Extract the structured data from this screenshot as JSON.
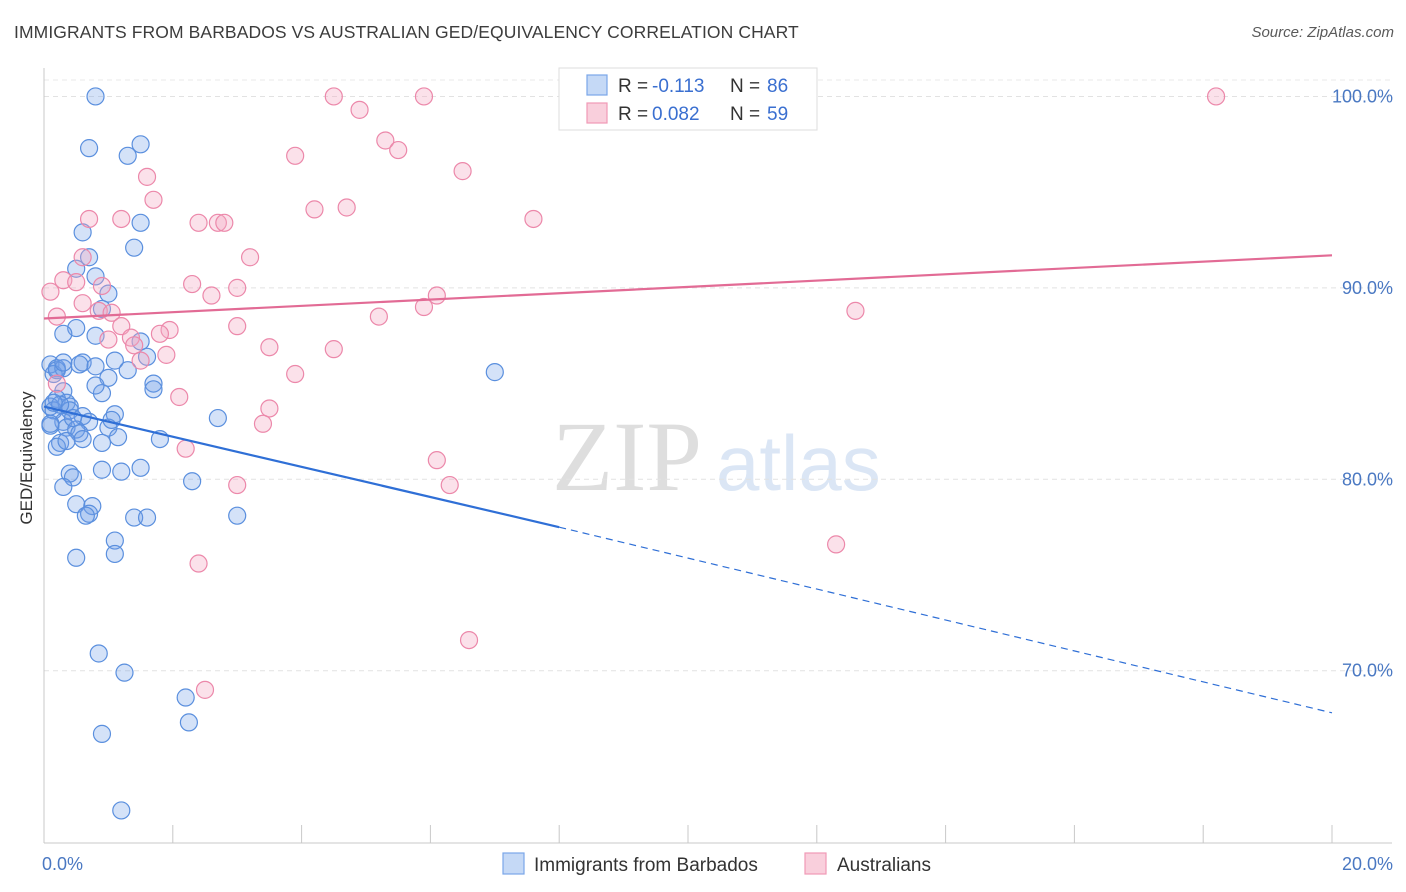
{
  "title": "IMMIGRANTS FROM BARBADOS VS AUSTRALIAN GED/EQUIVALENCY CORRELATION CHART",
  "source": "Source: ZipAtlas.com",
  "watermark": {
    "zip": "ZIP",
    "atlas": "atlas"
  },
  "legend_box": [
    {
      "r_label": "R =",
      "r_value": "-0.113",
      "n_label": "N =",
      "n_value": "86",
      "color": "#6fa0e8"
    },
    {
      "r_label": "R =",
      "r_value": "0.082",
      "n_label": "N =",
      "n_value": "59",
      "color": "#f08fb0"
    }
  ],
  "bottom_legend": [
    {
      "label": "Immigrants from Barbados",
      "color": "#6fa0e8"
    },
    {
      "label": "Australians",
      "color": "#f08fb0"
    }
  ],
  "chart_data": {
    "type": "scatter",
    "ylabel": "GED/Equivalency",
    "xlabel": "",
    "xlim": [
      0.0,
      20.0
    ],
    "ylim": [
      61.0,
      101.8
    ],
    "x_tick_labels": [
      {
        "value": 0.0,
        "label": "0.0%"
      },
      {
        "value": 20.0,
        "label": "20.0%"
      }
    ],
    "y_tick_labels": [
      {
        "value": 100.0,
        "label": "100.0%"
      },
      {
        "value": 90.0,
        "label": "90.0%"
      },
      {
        "value": 80.0,
        "label": "80.0%"
      },
      {
        "value": 70.0,
        "label": "70.0%"
      }
    ],
    "grid": true,
    "series": [
      {
        "name": "Immigrants from Barbados",
        "color": "#6fa0e8",
        "stroke": "#5a8fde",
        "trend": {
          "x": [
            0.0,
            8.0
          ],
          "y": [
            83.8,
            77.5
          ],
          "dash_to": [
            20.0,
            67.8
          ]
        },
        "points": [
          [
            0.8,
            100.0
          ],
          [
            0.7,
            97.3
          ],
          [
            1.3,
            96.9
          ],
          [
            1.5,
            97.5
          ],
          [
            0.6,
            92.9
          ],
          [
            1.5,
            93.4
          ],
          [
            1.4,
            92.1
          ],
          [
            0.5,
            91.0
          ],
          [
            0.7,
            91.6
          ],
          [
            0.8,
            90.6
          ],
          [
            1.0,
            89.7
          ],
          [
            0.9,
            88.9
          ],
          [
            0.5,
            87.9
          ],
          [
            0.3,
            87.6
          ],
          [
            0.8,
            87.5
          ],
          [
            1.5,
            87.2
          ],
          [
            1.6,
            86.4
          ],
          [
            1.1,
            86.2
          ],
          [
            0.6,
            86.1
          ],
          [
            0.1,
            86.0
          ],
          [
            0.2,
            85.8
          ],
          [
            0.15,
            85.5
          ],
          [
            0.3,
            85.8
          ],
          [
            0.8,
            85.9
          ],
          [
            1.3,
            85.7
          ],
          [
            1.0,
            85.3
          ],
          [
            1.7,
            85.0
          ],
          [
            1.7,
            84.7
          ],
          [
            0.3,
            84.6
          ],
          [
            0.9,
            84.5
          ],
          [
            0.2,
            84.2
          ],
          [
            0.35,
            84.0
          ],
          [
            0.4,
            83.8
          ],
          [
            0.1,
            83.8
          ],
          [
            0.15,
            83.6
          ],
          [
            0.4,
            83.6
          ],
          [
            0.6,
            83.3
          ],
          [
            1.1,
            83.4
          ],
          [
            0.3,
            83.0
          ],
          [
            0.7,
            83.0
          ],
          [
            0.1,
            82.8
          ],
          [
            0.35,
            82.7
          ],
          [
            0.5,
            82.6
          ],
          [
            1.0,
            82.7
          ],
          [
            0.55,
            82.4
          ],
          [
            1.15,
            82.2
          ],
          [
            0.6,
            82.1
          ],
          [
            1.8,
            82.1
          ],
          [
            0.25,
            81.9
          ],
          [
            0.9,
            81.9
          ],
          [
            0.2,
            81.7
          ],
          [
            2.7,
            83.2
          ],
          [
            0.4,
            80.3
          ],
          [
            0.45,
            80.1
          ],
          [
            0.9,
            80.5
          ],
          [
            1.2,
            80.4
          ],
          [
            1.5,
            80.6
          ],
          [
            2.3,
            79.9
          ],
          [
            0.3,
            79.6
          ],
          [
            0.5,
            78.7
          ],
          [
            0.75,
            78.6
          ],
          [
            0.7,
            78.2
          ],
          [
            0.65,
            78.1
          ],
          [
            1.4,
            78.0
          ],
          [
            1.6,
            78.0
          ],
          [
            3.0,
            78.1
          ],
          [
            1.1,
            76.8
          ],
          [
            1.1,
            76.1
          ],
          [
            0.5,
            75.9
          ],
          [
            7.0,
            85.6
          ],
          [
            0.85,
            70.9
          ],
          [
            1.25,
            69.9
          ],
          [
            2.2,
            68.6
          ],
          [
            2.25,
            67.3
          ],
          [
            0.9,
            66.7
          ],
          [
            1.2,
            62.7
          ],
          [
            0.1,
            82.9
          ],
          [
            0.2,
            85.7
          ],
          [
            0.25,
            83.9
          ],
          [
            0.55,
            86.0
          ],
          [
            0.15,
            84.0
          ],
          [
            0.35,
            82.0
          ],
          [
            0.8,
            84.9
          ],
          [
            0.3,
            86.1
          ],
          [
            0.45,
            83.2
          ],
          [
            1.05,
            83.1
          ]
        ]
      },
      {
        "name": "Australians",
        "color": "#f4a8c2",
        "stroke": "#ec88aa",
        "trend": {
          "x": [
            0.0,
            20.0
          ],
          "y": [
            88.4,
            91.7
          ]
        },
        "points": [
          [
            4.5,
            100.0
          ],
          [
            5.9,
            100.0
          ],
          [
            18.2,
            100.0
          ],
          [
            4.9,
            99.3
          ],
          [
            5.3,
            97.7
          ],
          [
            5.5,
            97.2
          ],
          [
            3.9,
            96.9
          ],
          [
            6.5,
            96.1
          ],
          [
            1.6,
            95.8
          ],
          [
            1.7,
            94.6
          ],
          [
            4.2,
            94.1
          ],
          [
            4.7,
            94.2
          ],
          [
            0.7,
            93.6
          ],
          [
            1.2,
            93.6
          ],
          [
            2.4,
            93.4
          ],
          [
            2.7,
            93.4
          ],
          [
            2.8,
            93.4
          ],
          [
            7.6,
            93.6
          ],
          [
            0.6,
            91.6
          ],
          [
            3.2,
            91.6
          ],
          [
            0.3,
            90.4
          ],
          [
            0.5,
            90.3
          ],
          [
            2.3,
            90.2
          ],
          [
            0.9,
            90.1
          ],
          [
            3.0,
            90.0
          ],
          [
            0.1,
            89.8
          ],
          [
            2.6,
            89.6
          ],
          [
            6.1,
            89.6
          ],
          [
            5.9,
            89.0
          ],
          [
            0.85,
            88.8
          ],
          [
            1.05,
            88.7
          ],
          [
            0.2,
            88.5
          ],
          [
            5.2,
            88.5
          ],
          [
            12.6,
            88.8
          ],
          [
            1.2,
            88.0
          ],
          [
            1.95,
            87.8
          ],
          [
            3.0,
            88.0
          ],
          [
            1.35,
            87.4
          ],
          [
            1.8,
            87.6
          ],
          [
            1.0,
            87.3
          ],
          [
            1.4,
            87.0
          ],
          [
            3.5,
            86.9
          ],
          [
            4.5,
            86.8
          ],
          [
            1.5,
            86.2
          ],
          [
            1.9,
            86.5
          ],
          [
            3.9,
            85.5
          ],
          [
            0.2,
            85.0
          ],
          [
            2.1,
            84.3
          ],
          [
            3.5,
            83.7
          ],
          [
            3.4,
            82.9
          ],
          [
            2.2,
            81.6
          ],
          [
            6.1,
            81.0
          ],
          [
            6.3,
            79.7
          ],
          [
            3.0,
            79.7
          ],
          [
            12.3,
            76.6
          ],
          [
            2.4,
            75.6
          ],
          [
            6.6,
            71.6
          ],
          [
            2.5,
            69.0
          ],
          [
            0.6,
            89.2
          ]
        ]
      }
    ]
  }
}
